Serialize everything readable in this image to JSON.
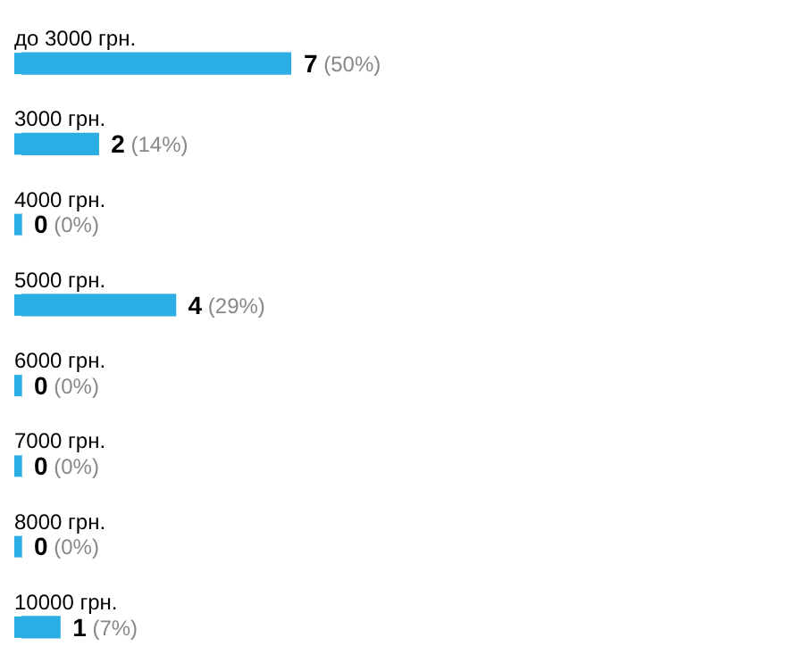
{
  "chart_data": {
    "type": "bar",
    "orientation": "horizontal",
    "categories": [
      "до 3000 грн.",
      "3000 грн.",
      "4000 грн.",
      "5000 грн.",
      "6000 грн.",
      "7000 грн.",
      "8000 грн.",
      "10000 грн."
    ],
    "values": [
      7,
      2,
      0,
      4,
      0,
      0,
      0,
      1
    ],
    "value_labels": [
      "7 (50%)",
      "2 (14%)",
      "0 (0%)",
      "4 (29%)",
      "0 (0%)",
      "0 (0%)",
      "0 (0%)",
      "1 (7%)"
    ],
    "color": "#2aaee4",
    "legend": false,
    "tick_labels": false
  }
}
